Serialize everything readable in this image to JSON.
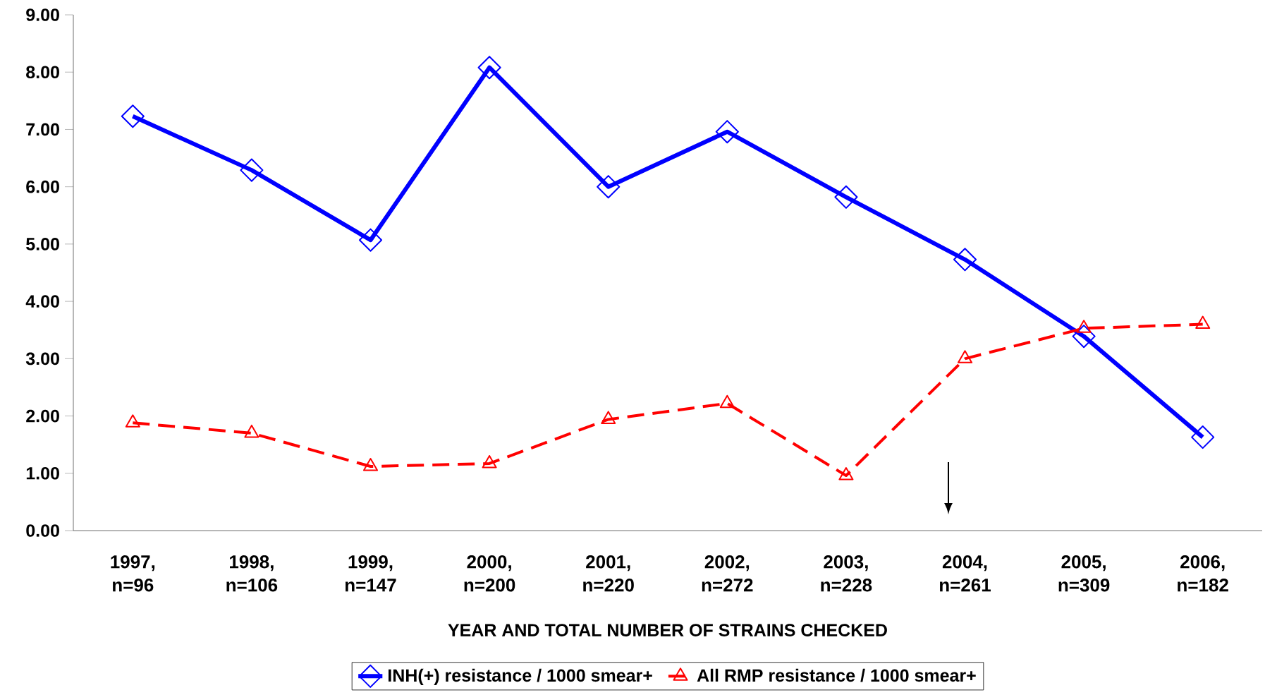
{
  "chart_data": {
    "type": "line",
    "xlabel": "YEAR AND TOTAL NUMBER OF STRAINS CHECKED",
    "categories": [
      "1997, n=96",
      "1998, n=106",
      "1999, n=147",
      "2000, n=200",
      "2001, n=220",
      "2002, n=272",
      "2003, n=228",
      "2004, n=261",
      "2005, n=309",
      "2006, n=182"
    ],
    "series": [
      {
        "name": "INH(+) resistance / 1000 smear+",
        "color": "#0000ff",
        "marker": "diamond",
        "line_style": "solid",
        "values": [
          7.23,
          6.29,
          5.07,
          8.08,
          6.0,
          6.96,
          5.82,
          4.73,
          3.39,
          1.63
        ]
      },
      {
        "name": "All RMP resistance / 1000 smear+",
        "color": "#ff0000",
        "marker": "triangle",
        "line_style": "dashed",
        "values": [
          1.88,
          1.7,
          1.12,
          1.17,
          1.94,
          2.22,
          0.96,
          3.0,
          3.53,
          3.6
        ]
      }
    ],
    "ylim": [
      0,
      9
    ],
    "yticks": [
      {
        "value": 0,
        "label": "0.00"
      },
      {
        "value": 1,
        "label": "1.00"
      },
      {
        "value": 2,
        "label": "2.00"
      },
      {
        "value": 3,
        "label": "3.00"
      },
      {
        "value": 4,
        "label": "4.00"
      },
      {
        "value": 5,
        "label": "5.00"
      },
      {
        "value": 6,
        "label": "6.00"
      },
      {
        "value": 7,
        "label": "7.00"
      },
      {
        "value": 8,
        "label": "8.00"
      },
      {
        "value": 9,
        "label": "9.00"
      }
    ],
    "grid": false,
    "legend": "bottom"
  }
}
